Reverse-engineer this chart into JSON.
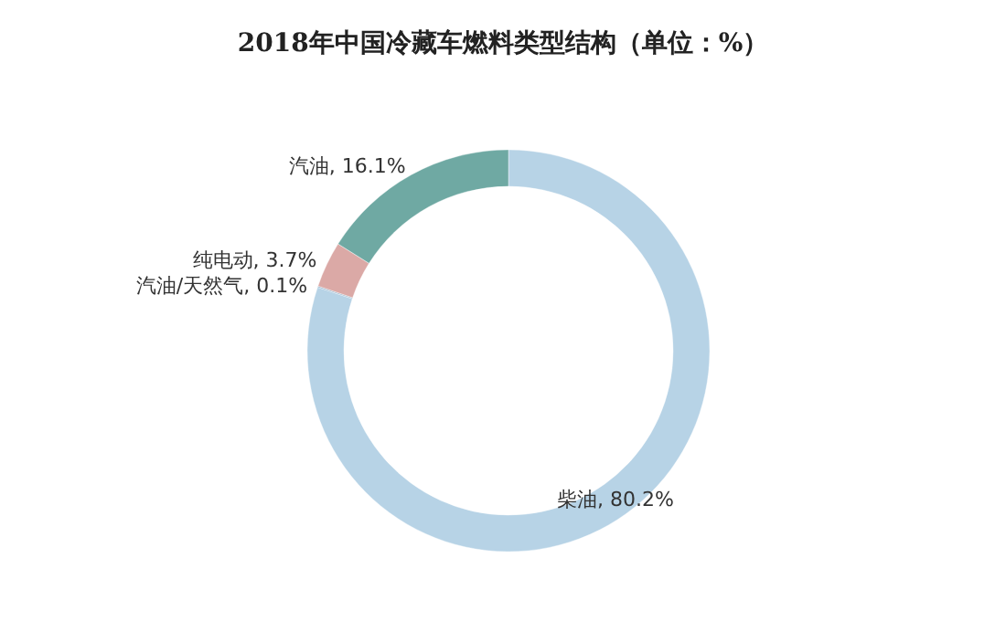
{
  "chart_data": {
    "type": "donut",
    "title": "2018年中国冷藏车燃料类型结构（单位：%）",
    "categories": [
      "柴油",
      "汽油/天然气",
      "纯电动",
      "汽油"
    ],
    "values": [
      80.2,
      0.1,
      3.7,
      16.1
    ],
    "value_labels": [
      "80.2%",
      "0.1%",
      "3.7%",
      "16.1%"
    ],
    "colors": [
      "#b7d3e6",
      "#8fb0c9",
      "#dba9a6",
      "#6fa9a3"
    ]
  }
}
